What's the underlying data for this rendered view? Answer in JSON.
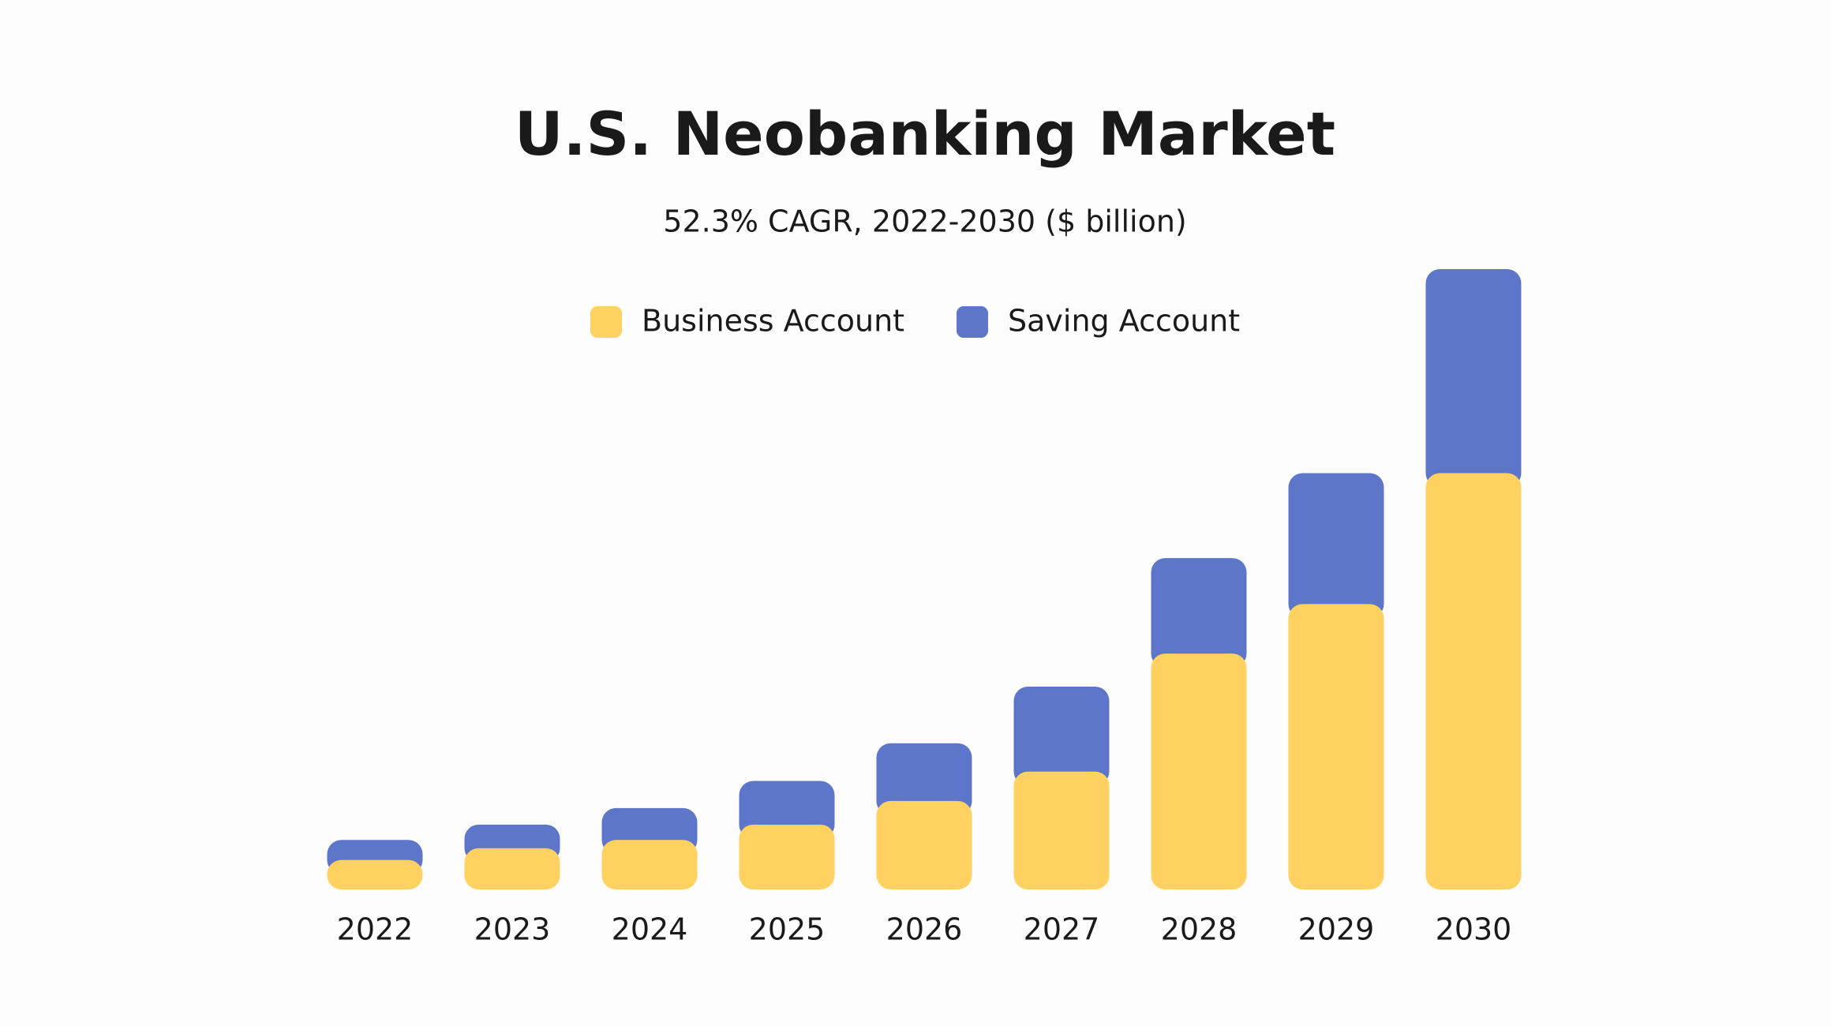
{
  "chart_data": {
    "type": "stacked_bar",
    "title": "U.S. Neobanking Market",
    "subtitle": "52.3% CAGR, 2022-2030 ($ billion)",
    "categories": [
      "2022",
      "2023",
      "2024",
      "2025",
      "2026",
      "2027",
      "2028",
      "2029",
      "2030"
    ],
    "series": [
      {
        "name": "Business Account",
        "color": "#ffd160",
        "values": [
          2.5,
          3.5,
          4.2,
          5.5,
          7.5,
          10,
          20,
          24.2,
          35.3
        ]
      },
      {
        "name": "Saving Account",
        "color": "#5e76c9",
        "values": [
          1.7,
          2.0,
          2.7,
          3.7,
          4.9,
          7.2,
          8.1,
          11.1,
          17.3
        ]
      }
    ],
    "legend": "top"
  }
}
